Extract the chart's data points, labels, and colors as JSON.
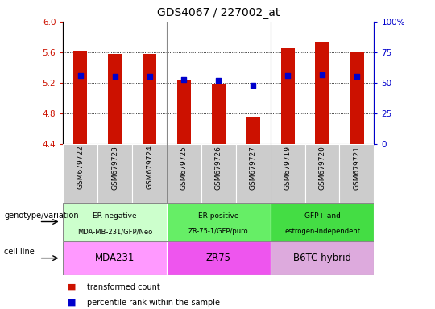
{
  "title": "GDS4067 / 227002_at",
  "samples": [
    "GSM679722",
    "GSM679723",
    "GSM679724",
    "GSM679725",
    "GSM679726",
    "GSM679727",
    "GSM679719",
    "GSM679720",
    "GSM679721"
  ],
  "bar_values": [
    5.62,
    5.58,
    5.58,
    5.23,
    5.18,
    4.75,
    5.65,
    5.73,
    5.6
  ],
  "bar_base": 4.4,
  "percentile_values": [
    5.29,
    5.28,
    5.28,
    5.24,
    5.23,
    5.17,
    5.29,
    5.3,
    5.28
  ],
  "ylim_left": [
    4.4,
    6.0
  ],
  "ylim_right": [
    0,
    100
  ],
  "yticks_left": [
    4.4,
    4.8,
    5.2,
    5.6,
    6.0
  ],
  "yticks_right": [
    0,
    25,
    50,
    75,
    100
  ],
  "ytick_labels_right": [
    "0",
    "25",
    "50",
    "75",
    "100%"
  ],
  "bar_color": "#CC1100",
  "dot_color": "#0000CC",
  "groups": [
    {
      "label": "ER negative\nMDA-MB-231/GFP/Neo",
      "cell_line": "MDA231",
      "geno_color": "#ccffcc",
      "cell_color": "#ff99ff"
    },
    {
      "label": "ER positive\nZR-75-1/GFP/puro",
      "cell_line": "ZR75",
      "geno_color": "#66ee66",
      "cell_color": "#ee55ee"
    },
    {
      "label": "GFP+ and\nestrogen-independent",
      "cell_line": "B6TC hybrid",
      "geno_color": "#44dd44",
      "cell_color": "#ddaadd"
    }
  ],
  "legend_tc": "transformed count",
  "legend_pr": "percentile rank within the sample",
  "label_genotype": "genotype/variation",
  "label_cell": "cell line",
  "tick_color_left": "#CC1100",
  "tick_color_right": "#0000CC",
  "sample_label_bg": "#cccccc",
  "spine_color": "#888888",
  "gridline_color": "#000000",
  "bar_width": 0.4
}
